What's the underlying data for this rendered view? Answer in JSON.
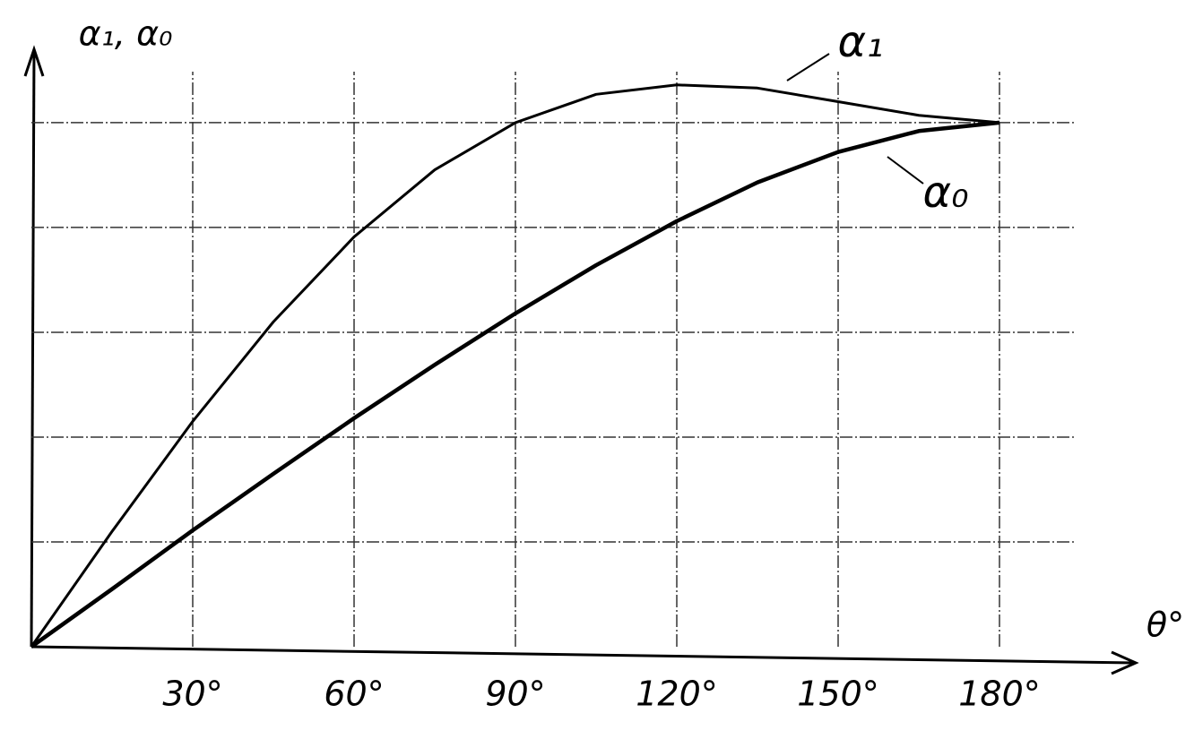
{
  "chart_data": {
    "type": "line",
    "y_label": "α₁, α₀",
    "x_label": "θ°",
    "x": [
      0,
      15,
      30,
      45,
      60,
      75,
      90,
      105,
      120,
      135,
      150,
      165,
      180
    ],
    "series": [
      {
        "name": "α₁",
        "color": "#000000",
        "values": [
          0,
          0.11,
          0.215,
          0.31,
          0.391,
          0.455,
          0.5,
          0.527,
          0.536,
          0.533,
          0.52,
          0.507,
          0.5
        ]
      },
      {
        "name": "α₀",
        "color": "#000000",
        "values": [
          0,
          0.055,
          0.111,
          0.165,
          0.218,
          0.269,
          0.318,
          0.364,
          0.406,
          0.443,
          0.472,
          0.492,
          0.5
        ]
      }
    ],
    "xlim": [
      0,
      205
    ],
    "ylim": [
      0,
      0.57
    ],
    "xticks": [
      {
        "value": 30,
        "label": "30°"
      },
      {
        "value": 60,
        "label": "60°"
      },
      {
        "value": 90,
        "label": "90°"
      },
      {
        "value": 120,
        "label": "120°"
      },
      {
        "value": 150,
        "label": "150°"
      },
      {
        "value": 180,
        "label": "180°"
      }
    ],
    "yticks": [
      0.1,
      0.2,
      0.3,
      0.4,
      0.5
    ],
    "grid": true
  }
}
